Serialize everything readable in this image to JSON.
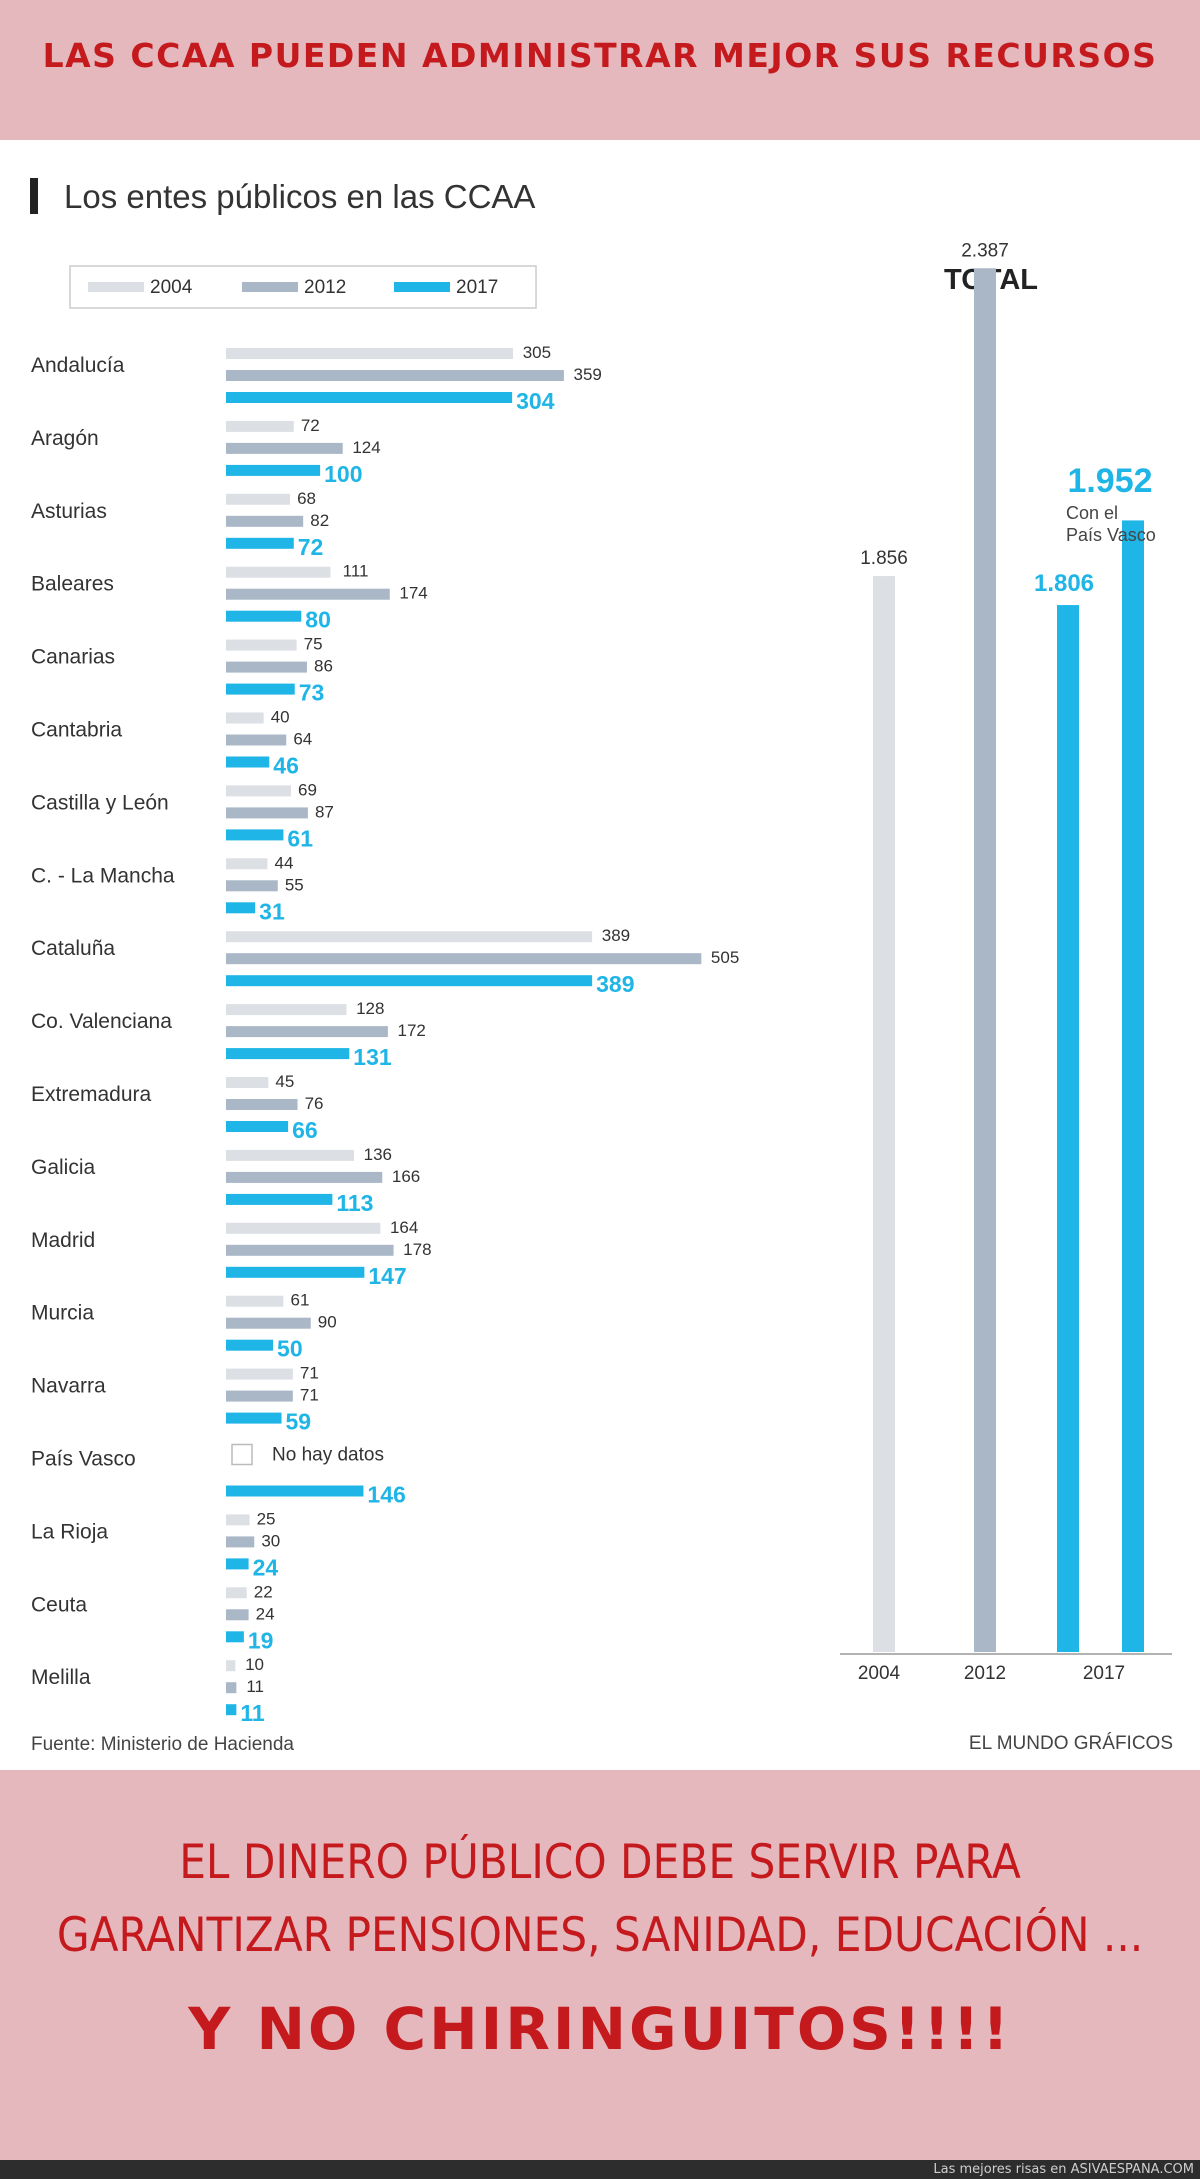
{
  "header": {
    "title": "LAS CCAA PUEDEN ADMINISTRAR MEJOR SUS RECURSOS"
  },
  "footer": {
    "line1": "EL DINERO PÚBLICO DEBE SERVIR PARA",
    "line2": "GARANTIZAR PENSIONES, SANIDAD, EDUCACIÓN ...",
    "line3": "Y NO CHIRINGUITOS!!!!",
    "site_text": "Las mejores risas en ASIVAESPANA.COM"
  },
  "colors": {
    "c2004": "#dcdfe4",
    "c2012": "#a9b7c6",
    "c2017": "#1fb5e6",
    "accent_red": "#c41a1e",
    "banner_bg": "#e5b8bd"
  },
  "chart_data": [
    {
      "type": "bar",
      "orientation": "horizontal",
      "title": "Los entes públicos en las CCAA",
      "legend": [
        "2004",
        "2012",
        "2017"
      ],
      "legend_placement": "top-left",
      "categories": [
        "Andalucía",
        "Aragón",
        "Asturias",
        "Baleares",
        "Canarias",
        "Cantabria",
        "Castilla y León",
        "C. - La Mancha",
        "Cataluña",
        "Co. Valenciana",
        "Extremadura",
        "Galicia",
        "Madrid",
        "Murcia",
        "Navarra",
        "País Vasco",
        "La Rioja",
        "Ceuta",
        "Melilla"
      ],
      "series": [
        {
          "name": "2004",
          "values": [
            305,
            72,
            68,
            111,
            75,
            40,
            69,
            44,
            389,
            128,
            45,
            136,
            164,
            61,
            71,
            null,
            25,
            22,
            10
          ]
        },
        {
          "name": "2012",
          "values": [
            359,
            124,
            82,
            174,
            86,
            64,
            87,
            55,
            505,
            172,
            76,
            166,
            178,
            90,
            71,
            null,
            30,
            24,
            11
          ]
        },
        {
          "name": "2017",
          "values": [
            304,
            100,
            72,
            80,
            73,
            46,
            61,
            31,
            389,
            131,
            66,
            113,
            147,
            50,
            59,
            146,
            24,
            19,
            11
          ]
        }
      ],
      "no_data_label": "No hay datos",
      "source": "Fuente: Ministerio de Hacienda",
      "grid": false
    },
    {
      "type": "bar",
      "title": "TOTAL",
      "bars": [
        {
          "year": "2004",
          "value": 1856,
          "label": "1.856",
          "series": "2004"
        },
        {
          "year": "2012",
          "value": 2387,
          "label": "2.387",
          "series": "2012"
        },
        {
          "year": "2017",
          "value": 1806,
          "label": "1.806",
          "series": "2017"
        },
        {
          "year": "2017",
          "value": 1952,
          "label": "1.952",
          "series": "2017",
          "note": "Con el País Vasco"
        }
      ],
      "x_labels": [
        "2004",
        "2012",
        "2017"
      ],
      "credit": "EL MUNDO GRÁFICOS",
      "grid": false
    }
  ]
}
